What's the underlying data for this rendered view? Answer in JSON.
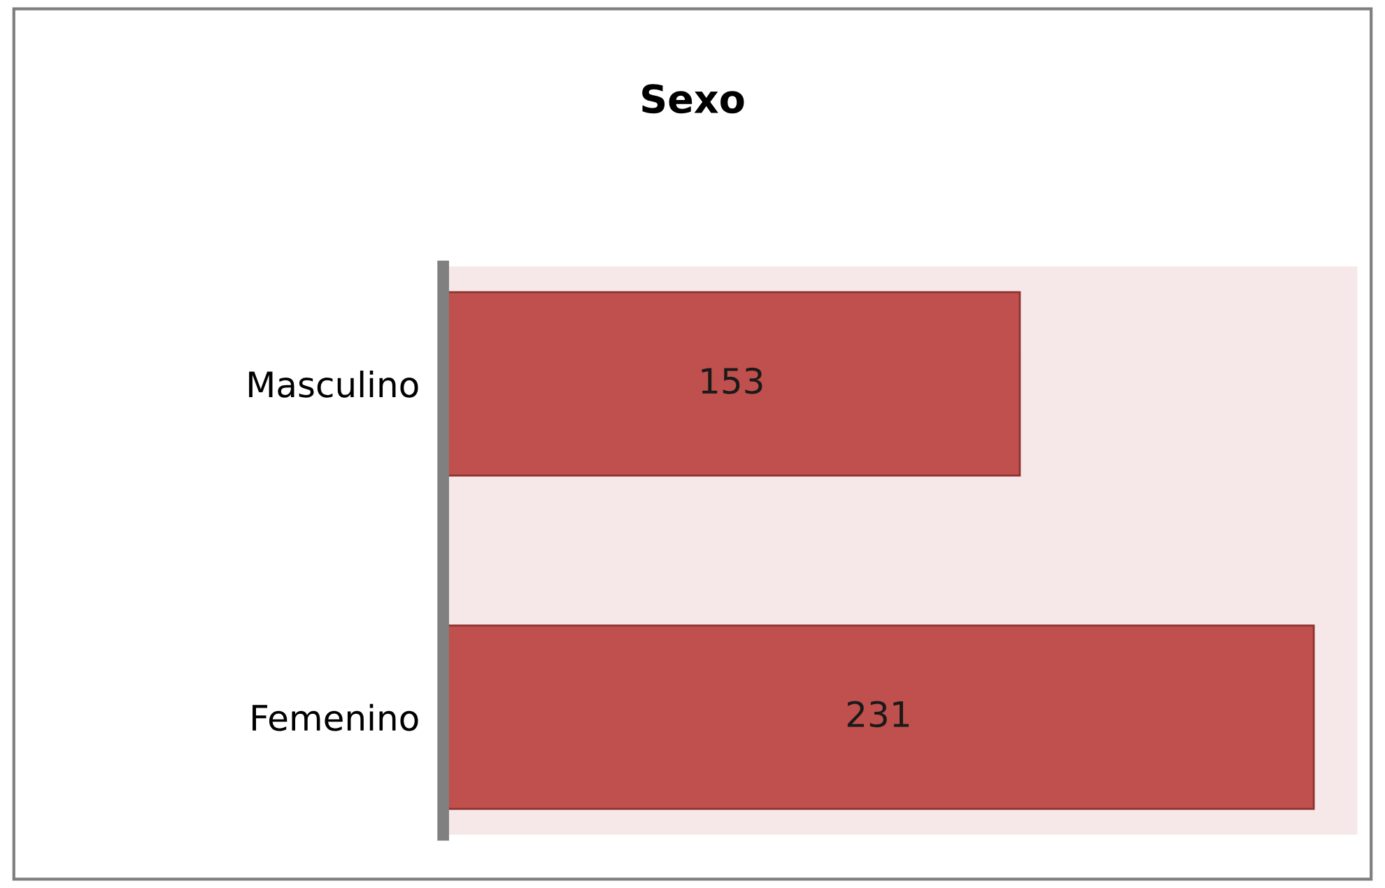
{
  "chart_data": {
    "type": "bar",
    "title": "Sexo",
    "orientation": "horizontal",
    "categories": [
      "Masculino",
      "Femenino"
    ],
    "values": [
      153,
      231
    ],
    "color": "#c0504d",
    "data_labels": true,
    "grid": false
  }
}
